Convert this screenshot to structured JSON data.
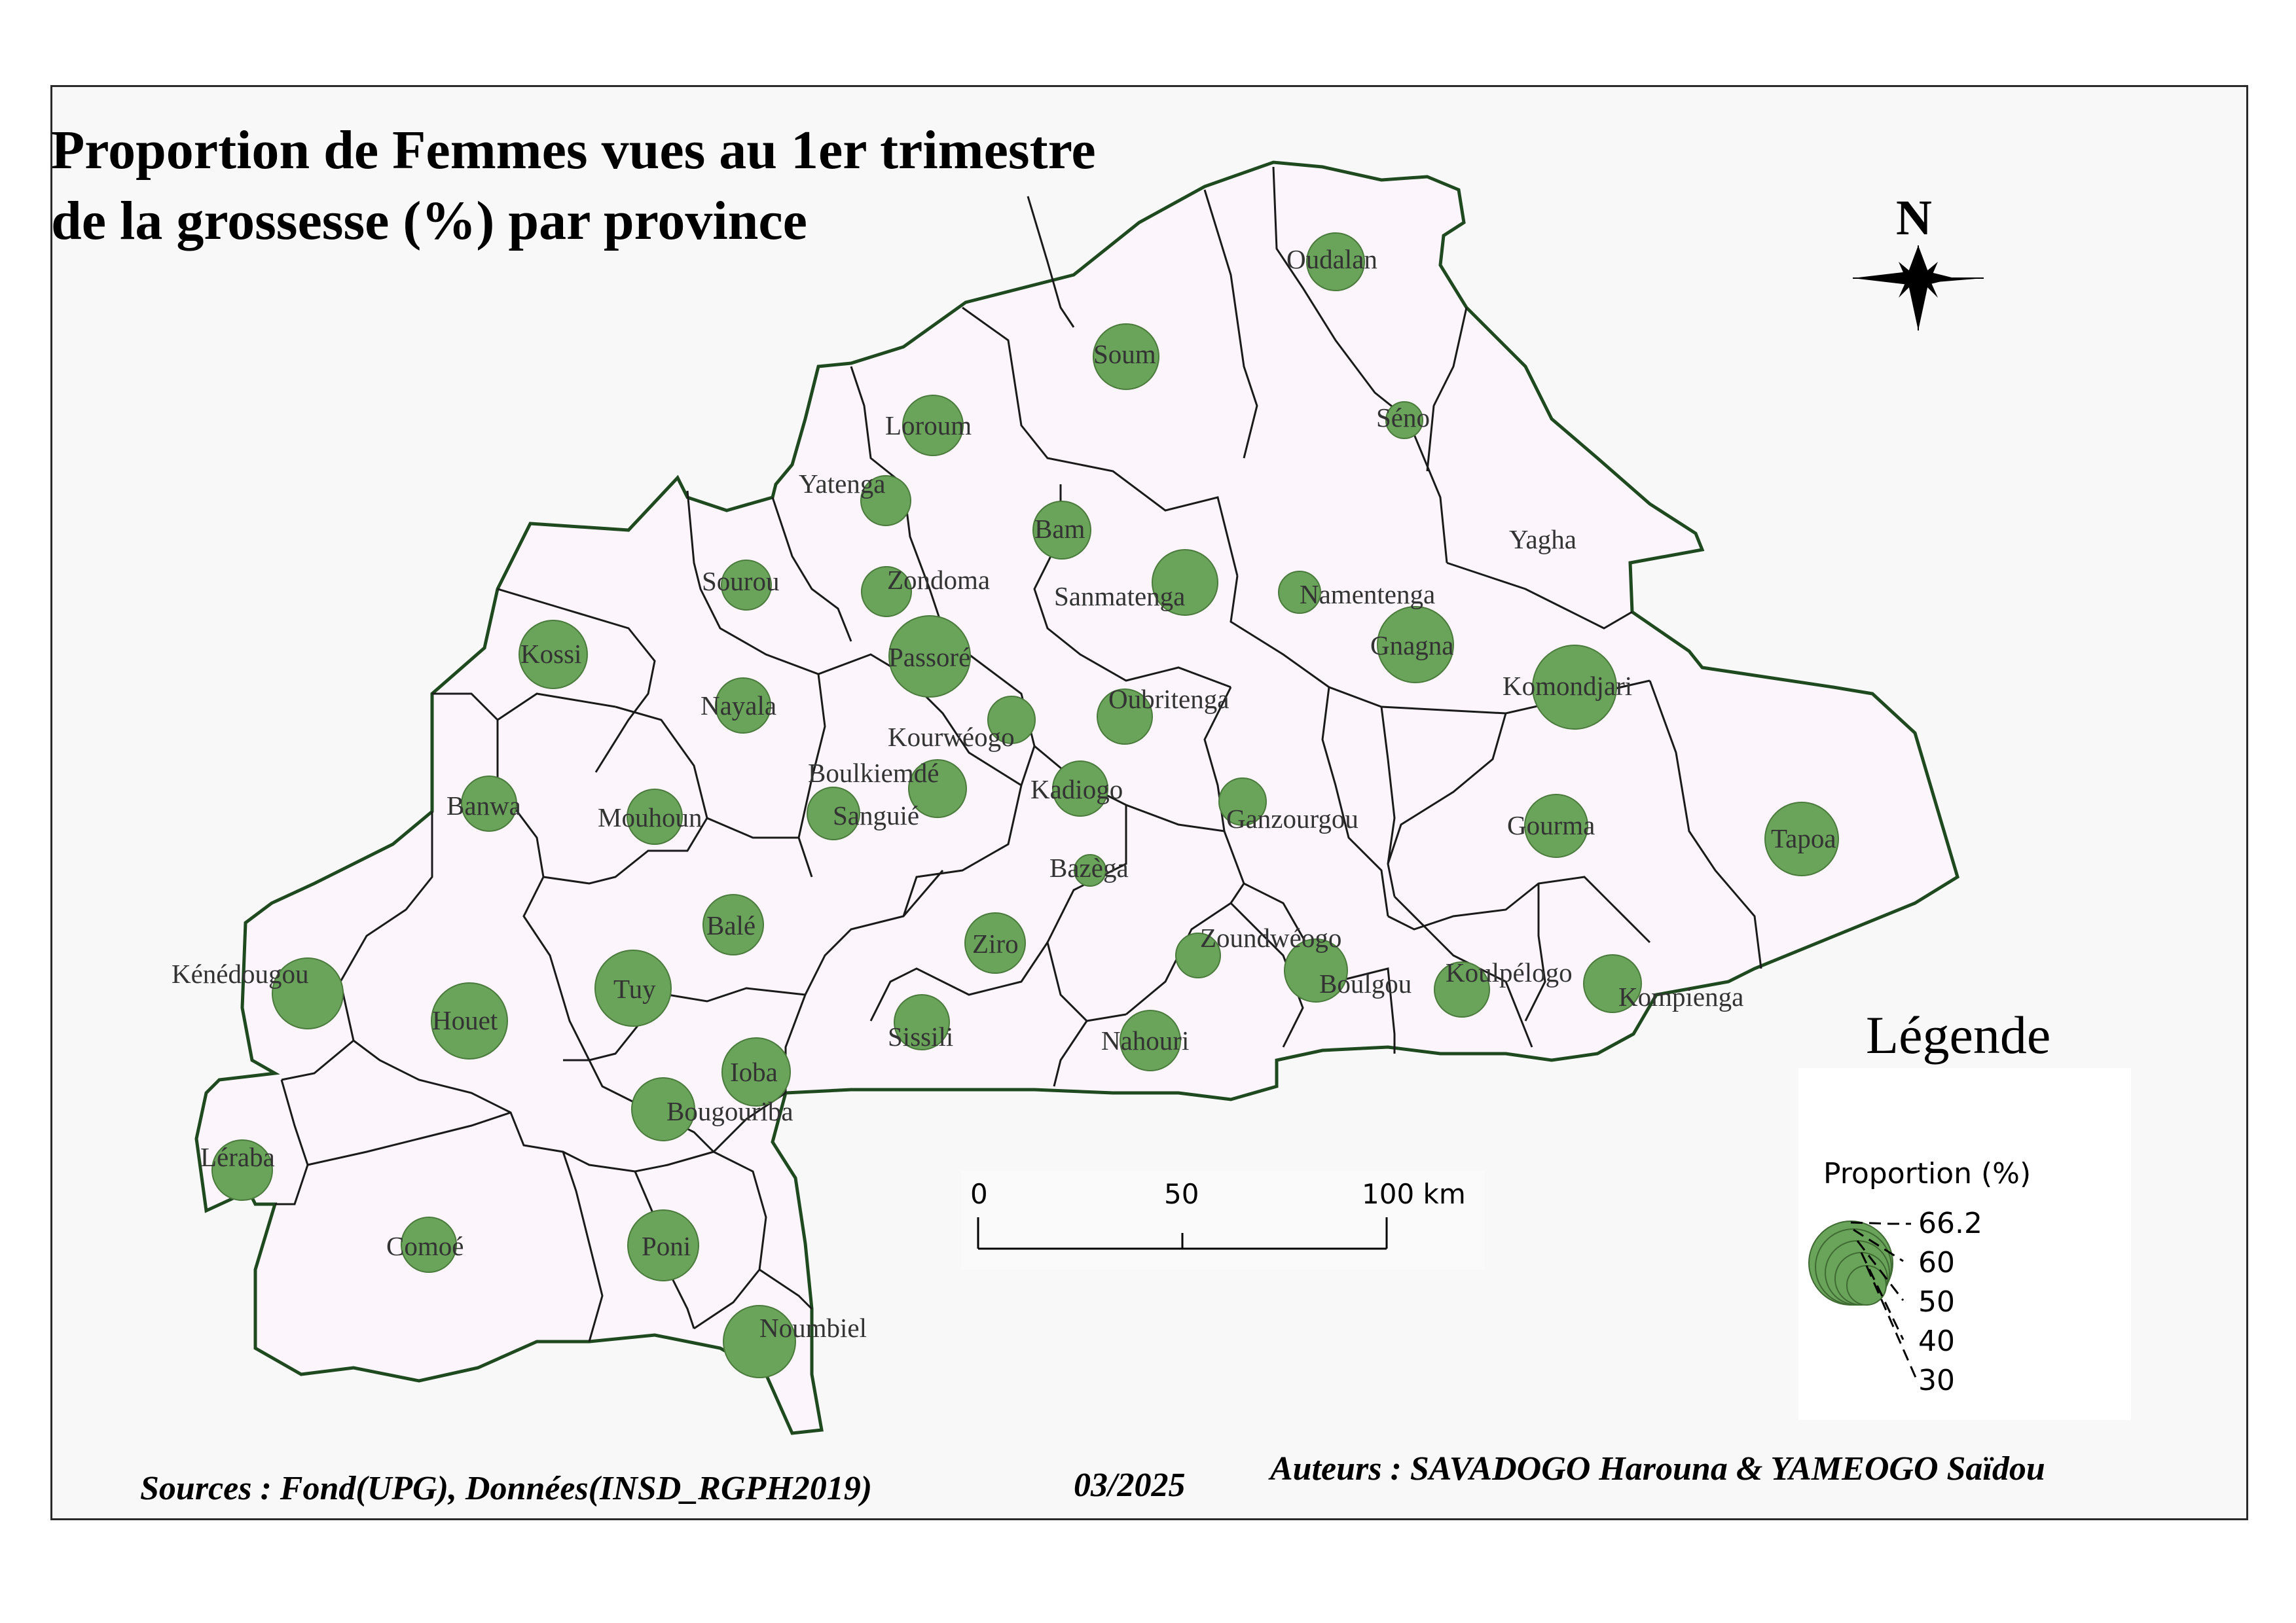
{
  "title": {
    "line1": "Proportion de Femmes vues au 1er trimestre",
    "line2": "de la grossesse (%) par province"
  },
  "north_arrow": {
    "label": "N",
    "icon": "north-arrow-icon"
  },
  "legend": {
    "title": "Légende",
    "subtitle": "Proportion (%)",
    "values": [
      "66.2",
      "60",
      "50",
      "40",
      "30"
    ]
  },
  "scale_bar": {
    "ticks": [
      "0",
      "50",
      "100 km"
    ]
  },
  "footer": {
    "sources": "Sources : Fond(UPG), Données(INSD_RGPH2019)",
    "date": "03/2025",
    "authors": "Auteurs : SAVADOGO Harouna & YAMEOGO Saïdou"
  },
  "colors": {
    "province_fill": "#fcf6fc",
    "province_border": "#1a1a1a",
    "country_border": "#1f4a1f",
    "symbol_fill": "#6aa35a",
    "symbol_stroke": "#4a7a3c",
    "frame_bg": "#f8f8f8"
  },
  "provinces": [
    {
      "name": "Oudalan"
    },
    {
      "name": "Soum"
    },
    {
      "name": "Séno"
    },
    {
      "name": "Loroum"
    },
    {
      "name": "Yatenga"
    },
    {
      "name": "Bam"
    },
    {
      "name": "Yagha"
    },
    {
      "name": "Sourou"
    },
    {
      "name": "Zondoma"
    },
    {
      "name": "Sanmatenga"
    },
    {
      "name": "Namentenga"
    },
    {
      "name": "Kossi"
    },
    {
      "name": "Passoré"
    },
    {
      "name": "Gnagna"
    },
    {
      "name": "Komondjari"
    },
    {
      "name": "Nayala"
    },
    {
      "name": "Kourwéogo"
    },
    {
      "name": "Oubritenga"
    },
    {
      "name": "Boulkiemdé"
    },
    {
      "name": "Banwa"
    },
    {
      "name": "Mouhoun"
    },
    {
      "name": "Sanguié"
    },
    {
      "name": "Kadiogo"
    },
    {
      "name": "Ganzourgou"
    },
    {
      "name": "Gourma"
    },
    {
      "name": "Tapoa"
    },
    {
      "name": "Bazèga"
    },
    {
      "name": "Balé"
    },
    {
      "name": "Ziro"
    },
    {
      "name": "Zoundwéogo"
    },
    {
      "name": "Kénédougou"
    },
    {
      "name": "Houet"
    },
    {
      "name": "Tuy"
    },
    {
      "name": "Koulpélogo"
    },
    {
      "name": "Boulgou"
    },
    {
      "name": "Kompienga"
    },
    {
      "name": "Sissili"
    },
    {
      "name": "Nahouri"
    },
    {
      "name": "Ioba"
    },
    {
      "name": "Bougouriba"
    },
    {
      "name": "Léraba"
    },
    {
      "name": "Comoé"
    },
    {
      "name": "Poni"
    },
    {
      "name": "Noumbiel"
    }
  ]
}
